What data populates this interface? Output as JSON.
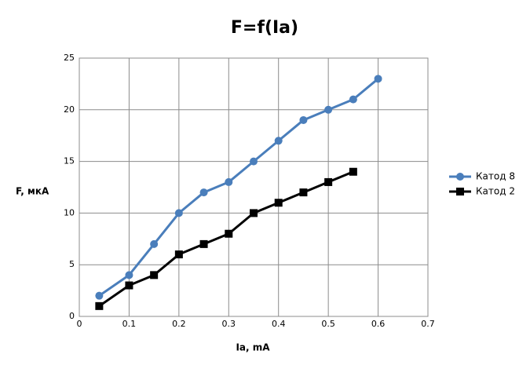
{
  "chart_data": {
    "type": "line",
    "title": "F=f(Ia)",
    "x_label": "Ia, mA",
    "y_label": "F, мкА",
    "xlim": [
      0,
      0.7
    ],
    "xticks": [
      0,
      0.1,
      0.2,
      0.3,
      0.4,
      0.5,
      0.6,
      0.7
    ],
    "ylim": [
      0,
      25
    ],
    "yticks": [
      0,
      5,
      10,
      15,
      20,
      25
    ],
    "grid": true,
    "legend": "right",
    "series": [
      {
        "name": "Катод 8",
        "color": "#4a7ebb",
        "marker": "circle",
        "x": [
          0.04,
          0.1,
          0.15,
          0.2,
          0.25,
          0.3,
          0.35,
          0.4,
          0.45,
          0.5,
          0.55,
          0.6
        ],
        "values": [
          2,
          4,
          7,
          10,
          12,
          13,
          15,
          17,
          19,
          20,
          21,
          23
        ]
      },
      {
        "name": "Катод 2",
        "color": "#000000",
        "marker": "square",
        "x": [
          0.04,
          0.1,
          0.15,
          0.2,
          0.25,
          0.3,
          0.35,
          0.4,
          0.45,
          0.5,
          0.55
        ],
        "values": [
          1,
          3,
          4,
          6,
          7,
          8,
          10,
          11,
          12,
          13,
          14
        ]
      }
    ]
  }
}
